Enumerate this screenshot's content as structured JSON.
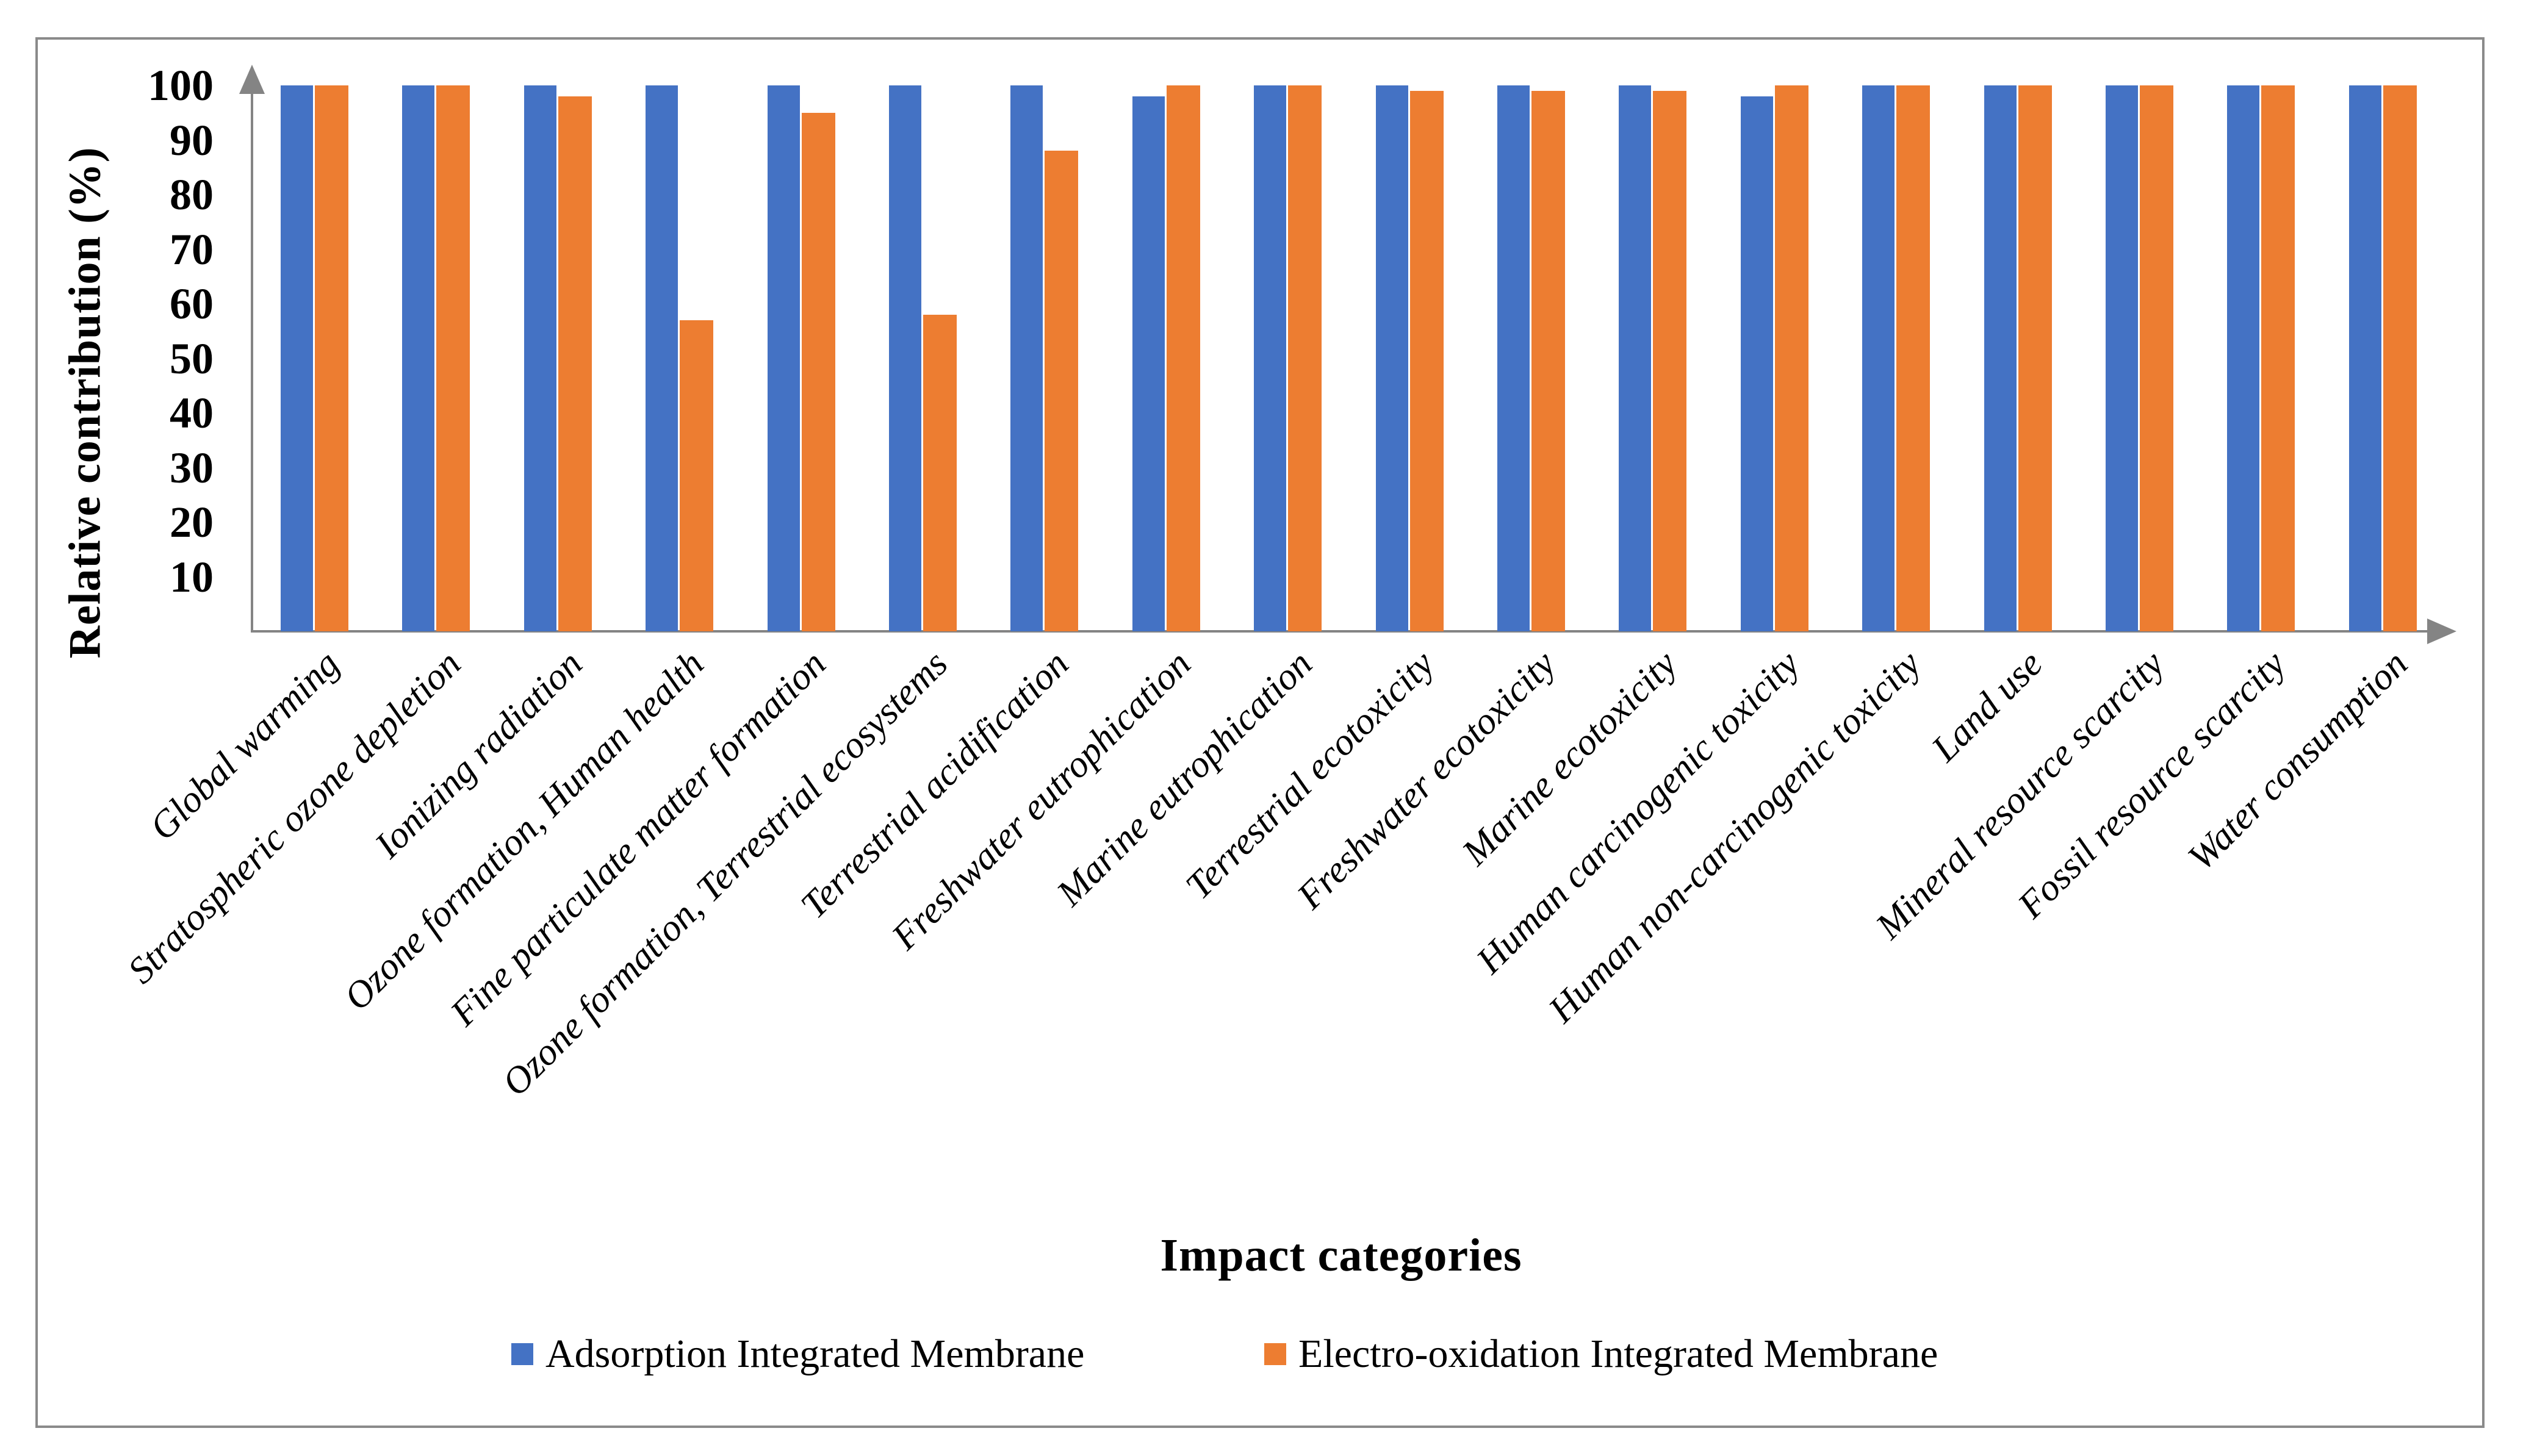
{
  "chart_data": {
    "type": "bar",
    "title": "",
    "xlabel": "Impact categories",
    "ylabel": "Relative contribution (%)",
    "ylim": [
      0,
      100
    ],
    "yticks": [
      10,
      20,
      30,
      40,
      50,
      60,
      70,
      80,
      90,
      100
    ],
    "grid": false,
    "legend_position": "bottom",
    "axis_color": "#848484",
    "text_color": "#000000",
    "categories": [
      "Global warming",
      "Stratospheric ozone depletion",
      "Ionizing radiation",
      "Ozone formation, Human health",
      "Fine particulate matter formation",
      "Ozone formation, Terrestrial ecosystems",
      "Terrestrial acidification",
      "Freshwater eutrophication",
      "Marine eutrophication",
      "Terrestrial ecotoxicity",
      "Freshwater ecotoxicity",
      "Marine ecotoxicity",
      "Human carcinogenic toxicity",
      "Human non-carcinogenic toxicity",
      "Land use",
      "Mineral resource scarcity",
      "Fossil resource scarcity",
      "Water consumption"
    ],
    "series": [
      {
        "name": "Adsorption Integrated Membrane",
        "color": "#4472C4",
        "values": [
          100,
          100,
          100,
          100,
          100,
          100,
          100,
          98,
          100,
          100,
          100,
          100,
          98,
          100,
          100,
          100,
          100,
          100
        ]
      },
      {
        "name": "Electro-oxidation Integrated Membrane",
        "color": "#ED7D31",
        "values": [
          100,
          100,
          98,
          57,
          95,
          58,
          88,
          100,
          100,
          99,
          99,
          99,
          100,
          100,
          100,
          100,
          100,
          100
        ]
      }
    ]
  }
}
